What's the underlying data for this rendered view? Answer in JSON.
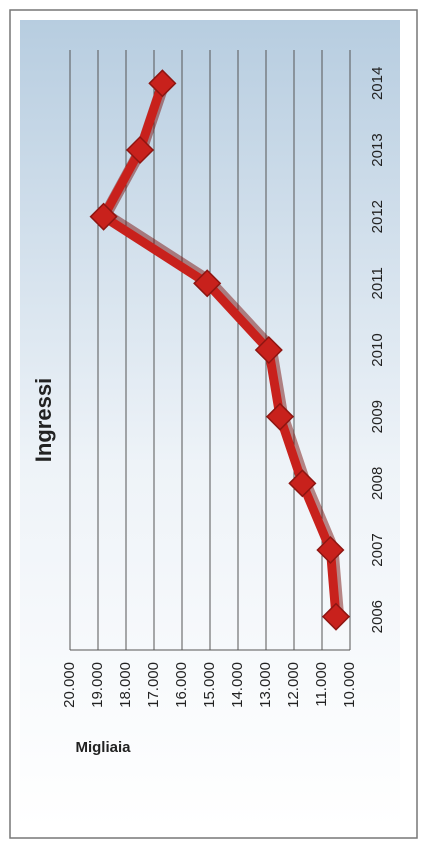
{
  "chart_data": {
    "type": "line",
    "title": "Ingressi",
    "y_label": "Migliaia",
    "categories": [
      "2006",
      "2007",
      "2008",
      "2009",
      "2010",
      "2011",
      "2012",
      "2013",
      "2014"
    ],
    "series": [
      {
        "name": "Ingressi",
        "color": "#c8211c",
        "values": [
          10500,
          10700,
          11700,
          12500,
          12900,
          15100,
          18800,
          17500,
          16700
        ]
      }
    ],
    "ylim": [
      10000,
      20000
    ],
    "yticks": [
      {
        "value": 10000,
        "label": "10.000"
      },
      {
        "value": 11000,
        "label": "11.000"
      },
      {
        "value": 12000,
        "label": "12.000"
      },
      {
        "value": 13000,
        "label": "13.000"
      },
      {
        "value": 14000,
        "label": "14.000"
      },
      {
        "value": 15000,
        "label": "15.000"
      },
      {
        "value": 16000,
        "label": "16.000"
      },
      {
        "value": 17000,
        "label": "17.000"
      },
      {
        "value": 18000,
        "label": "18.000"
      },
      {
        "value": 19000,
        "label": "19.000"
      },
      {
        "value": 20000,
        "label": "20.000"
      }
    ],
    "grid": true
  }
}
